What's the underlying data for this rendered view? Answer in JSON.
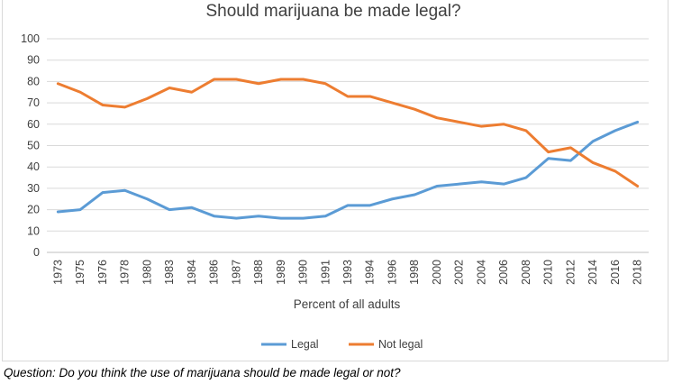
{
  "chart_data": {
    "type": "line",
    "title": "Should marijuana be made legal?",
    "xlabel": "Percent of all adults",
    "ylabel": "",
    "ylim": [
      0,
      100
    ],
    "yticks": [
      0,
      10,
      20,
      30,
      40,
      50,
      60,
      70,
      80,
      90,
      100
    ],
    "grid": true,
    "legend_position": "bottom",
    "categories": [
      "1973",
      "1975",
      "1976",
      "1978",
      "1980",
      "1983",
      "1984",
      "1986",
      "1987",
      "1988",
      "1989",
      "1990",
      "1991",
      "1993",
      "1994",
      "1996",
      "1998",
      "2000",
      "2002",
      "2004",
      "2006",
      "2008",
      "2010",
      "2012",
      "2014",
      "2016",
      "2018"
    ],
    "series": [
      {
        "name": "Legal",
        "color": "#5b9bd5",
        "values": [
          19,
          20,
          28,
          29,
          25,
          20,
          21,
          17,
          16,
          17,
          16,
          16,
          17,
          22,
          22,
          25,
          27,
          31,
          32,
          33,
          32,
          35,
          44,
          43,
          52,
          57,
          61
        ]
      },
      {
        "name": "Not legal",
        "color": "#ed7d31",
        "values": [
          79,
          75,
          69,
          68,
          72,
          77,
          75,
          81,
          81,
          79,
          81,
          81,
          79,
          73,
          73,
          70,
          67,
          63,
          61,
          59,
          60,
          57,
          47,
          49,
          42,
          38,
          31
        ]
      }
    ]
  },
  "caption": "Question: Do you think the use of marijuana should be made legal or not?"
}
